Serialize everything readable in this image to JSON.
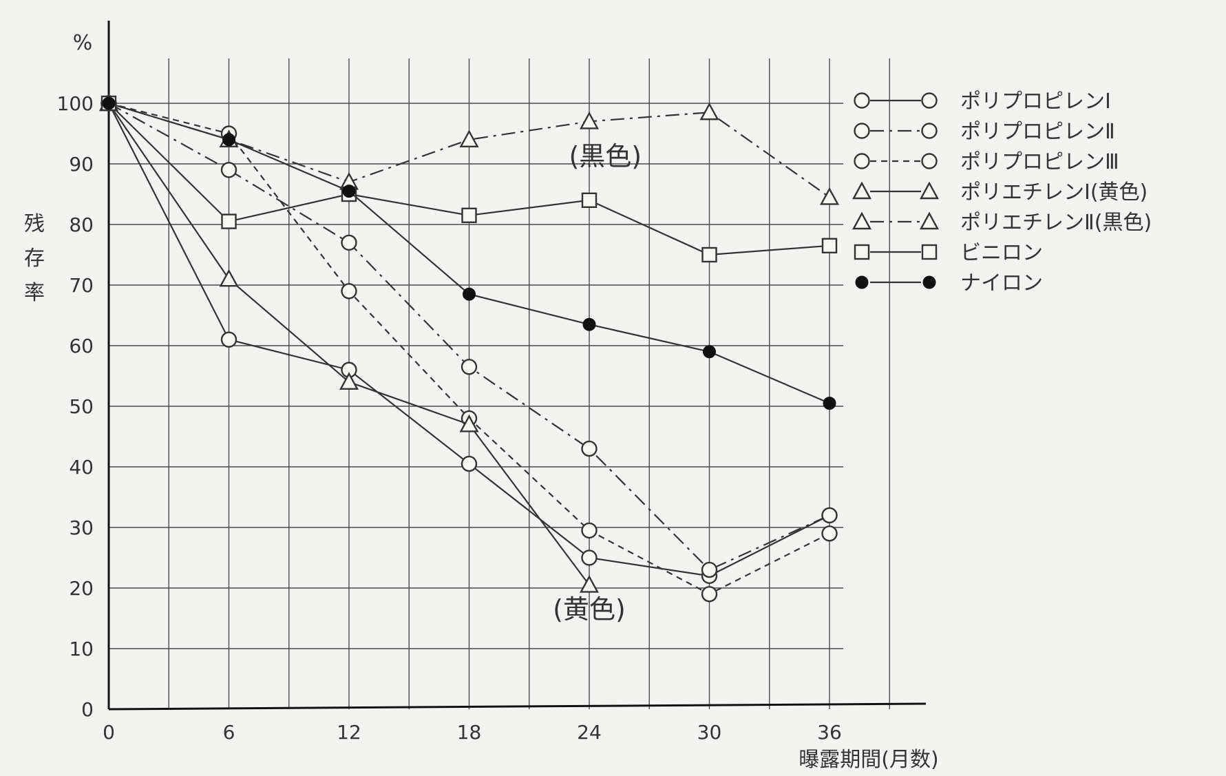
{
  "chart_data": {
    "type": "line",
    "xlabel": "曝露期間(月数)",
    "ylabel": "残存率",
    "y_unit": "%",
    "xlim": [
      0,
      36
    ],
    "ylim": [
      0,
      100
    ],
    "xticks": [
      0,
      6,
      12,
      18,
      24,
      30,
      36
    ],
    "yticks": [
      0,
      10,
      20,
      30,
      40,
      50,
      60,
      70,
      80,
      90,
      100
    ],
    "grid": true,
    "legend_position": "right",
    "series": [
      {
        "name": "ポリプロピレンⅠ",
        "marker": "circle-open",
        "line_style": "solid",
        "points": [
          [
            0,
            100
          ],
          [
            6,
            61
          ],
          [
            12,
            56
          ],
          [
            18,
            40.5
          ],
          [
            24,
            25
          ],
          [
            30,
            22
          ],
          [
            36,
            32
          ]
        ]
      },
      {
        "name": "ポリプロピレンⅡ",
        "marker": "circle-open",
        "line_style": "dashdot",
        "points": [
          [
            0,
            100
          ],
          [
            6,
            89
          ],
          [
            12,
            77
          ],
          [
            18,
            56.5
          ],
          [
            24,
            43
          ],
          [
            30,
            23
          ],
          [
            36,
            32
          ]
        ]
      },
      {
        "name": "ポリプロピレンⅢ",
        "marker": "circle-open",
        "line_style": "dashed",
        "points": [
          [
            0,
            100
          ],
          [
            6,
            95
          ],
          [
            12,
            69
          ],
          [
            18,
            48
          ],
          [
            24,
            29.5
          ],
          [
            30,
            19
          ],
          [
            36,
            29
          ]
        ]
      },
      {
        "name": "ポリエチレンⅠ(黄色)",
        "marker": "triangle-open",
        "line_style": "solid",
        "points": [
          [
            0,
            100
          ],
          [
            6,
            71
          ],
          [
            12,
            54
          ],
          [
            18,
            47
          ],
          [
            24,
            20.5
          ]
        ]
      },
      {
        "name": "ポリエチレンⅡ(黒色)",
        "marker": "triangle-open",
        "line_style": "dashdot",
        "points": [
          [
            0,
            100
          ],
          [
            6,
            94
          ],
          [
            12,
            87
          ],
          [
            18,
            94
          ],
          [
            24,
            97
          ],
          [
            30,
            98.5
          ],
          [
            36,
            84.5
          ]
        ]
      },
      {
        "name": "ビニロン",
        "marker": "square-open",
        "line_style": "solid",
        "points": [
          [
            0,
            100
          ],
          [
            6,
            80.5
          ],
          [
            12,
            85
          ],
          [
            18,
            81.5
          ],
          [
            24,
            84
          ],
          [
            30,
            75
          ],
          [
            36,
            76.5
          ]
        ]
      },
      {
        "name": "ナイロン",
        "marker": "circle-filled",
        "line_style": "solid",
        "points": [
          [
            0,
            100
          ],
          [
            6,
            94
          ],
          [
            12,
            85.5
          ],
          [
            18,
            68.5
          ],
          [
            24,
            63.5
          ],
          [
            30,
            59
          ],
          [
            36,
            50.5
          ]
        ]
      }
    ],
    "annotations": [
      {
        "text": "(黒色)",
        "x": 24.8,
        "y": 89.8
      },
      {
        "text": "(黄色)",
        "x": 24,
        "y": 15
      }
    ]
  }
}
